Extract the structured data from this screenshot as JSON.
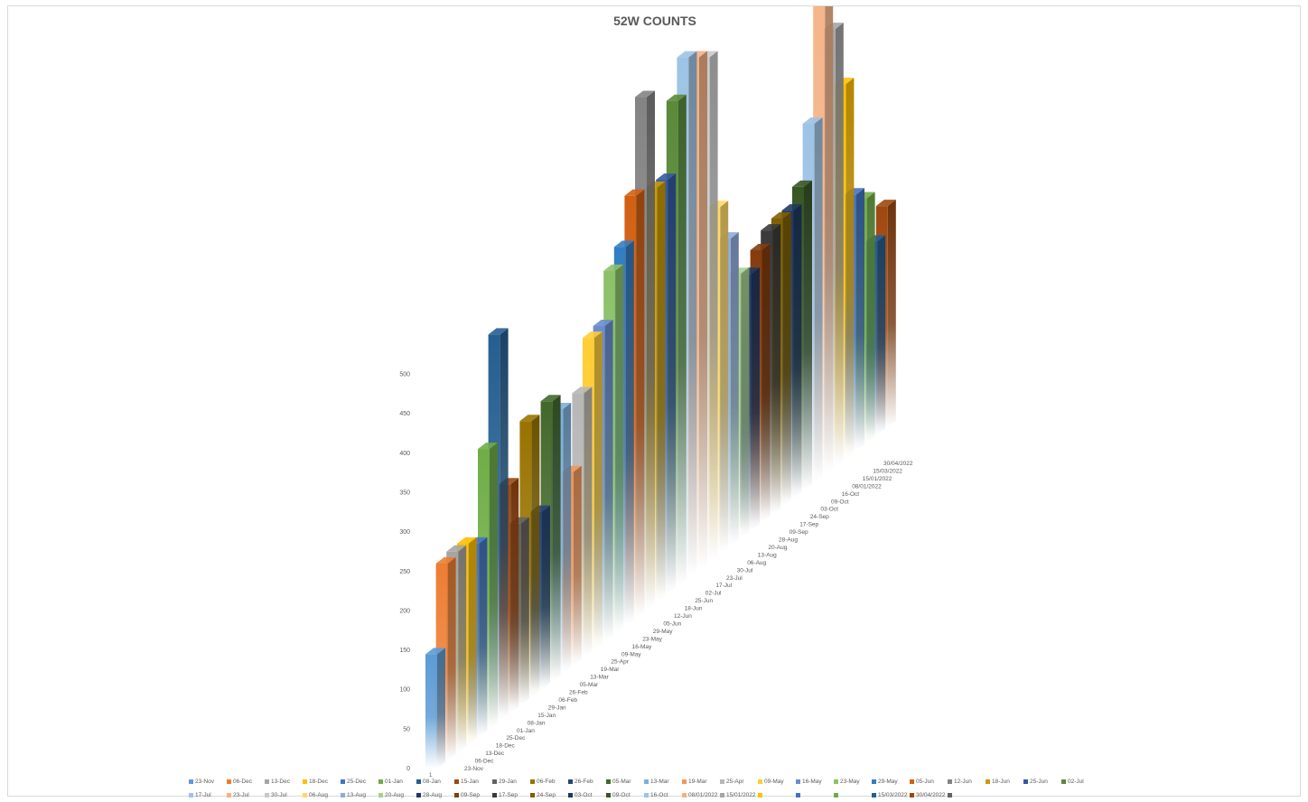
{
  "chart_data": {
    "type": "bar",
    "title": "52W COUNTS",
    "xlabel": "",
    "ylabel": "",
    "ylim": [
      0,
      500
    ],
    "yticks": [
      0,
      50,
      100,
      150,
      200,
      250,
      300,
      350,
      400,
      450,
      500
    ],
    "category_axis_label": "1",
    "grid": false,
    "legend_position": "bottom",
    "series": [
      {
        "name": "23-Nov",
        "value": 145,
        "color": "#5b9bd5"
      },
      {
        "name": "06-Dec",
        "value": 250,
        "color": "#ed7d31"
      },
      {
        "name": "13-Dec",
        "value": 255,
        "color": "#a5a5a5"
      },
      {
        "name": "18-Dec",
        "value": 255,
        "color": "#ffc000"
      },
      {
        "name": "25-Dec",
        "value": 245,
        "color": "#4472c4"
      },
      {
        "name": "01-Jan",
        "value": 355,
        "color": "#70ad47"
      },
      {
        "name": "08-Jan",
        "value": 490,
        "color": "#255e91"
      },
      {
        "name": "15-Jan",
        "value": 290,
        "color": "#9e480e"
      },
      {
        "name": "29-Jan",
        "value": 230,
        "color": "#636363"
      },
      {
        "name": "06-Feb",
        "value": 350,
        "color": "#997300"
      },
      {
        "name": "26-Feb",
        "value": 225,
        "color": "#264478"
      },
      {
        "name": "05-Mar",
        "value": 355,
        "color": "#43682b"
      },
      {
        "name": "13-Mar",
        "value": 335,
        "color": "#7cafdd"
      },
      {
        "name": "19-Mar",
        "value": 245,
        "color": "#f1975a"
      },
      {
        "name": "25-Apr",
        "value": 335,
        "color": "#b7b7b7"
      },
      {
        "name": "09-May",
        "value": 395,
        "color": "#ffcd33"
      },
      {
        "name": "16-May",
        "value": 400,
        "color": "#698ed0"
      },
      {
        "name": "23-May",
        "value": 460,
        "color": "#8cc168"
      },
      {
        "name": "29-May",
        "value": 480,
        "color": "#327dc2"
      },
      {
        "name": "05-Jun",
        "value": 535,
        "color": "#d26012"
      },
      {
        "name": "12-Jun",
        "value": 650,
        "color": "#848484"
      },
      {
        "name": "18-Jun",
        "value": 525,
        "color": "#cc9a00"
      },
      {
        "name": "25-Jun",
        "value": 525,
        "color": "#335aa1"
      },
      {
        "name": "02-Jul",
        "value": 615,
        "color": "#5a8a39"
      },
      {
        "name": "17-Jul",
        "value": 660,
        "color": "#9dc3e6"
      },
      {
        "name": "23-Jul",
        "value": 650,
        "color": "#f4b183"
      },
      {
        "name": "30-Jul",
        "value": 640,
        "color": "#c9c9c9"
      },
      {
        "name": "06-Aug",
        "value": 440,
        "color": "#ffd966"
      },
      {
        "name": "13-Aug",
        "value": 390,
        "color": "#8faadc"
      },
      {
        "name": "20-Aug",
        "value": 335,
        "color": "#a9d18e"
      },
      {
        "name": "28-Aug",
        "value": 325,
        "color": "#1f3864"
      },
      {
        "name": "09-Sep",
        "value": 345,
        "color": "#843c0c"
      },
      {
        "name": "17-Sep",
        "value": 360,
        "color": "#3a3a3a"
      },
      {
        "name": "24-Sep",
        "value": 365,
        "color": "#7f6000"
      },
      {
        "name": "03-Oct",
        "value": 365,
        "color": "#203864"
      },
      {
        "name": "09-Oct",
        "value": 385,
        "color": "#375623"
      },
      {
        "name": "16-Oct",
        "value": 455,
        "color": "#9dc3e6"
      },
      {
        "name": "08/01/2022",
        "value": 720,
        "color": "#f4b183"
      },
      {
        "name": "15/01/2022",
        "value": 555,
        "color": "#a5a5a5"
      },
      {
        "name": "",
        "value": 475,
        "color": "#ffc000"
      },
      {
        "name": "",
        "value": 325,
        "color": "#4472c4"
      },
      {
        "name": "",
        "value": 310,
        "color": "#70ad47"
      },
      {
        "name": "15/03/2022",
        "value": 245,
        "color": "#255e91"
      },
      {
        "name": "30/04/2022",
        "value": 280,
        "color": "#9e480e"
      },
      {
        "name": "",
        "value": 0,
        "color": "#636363"
      }
    ],
    "depth_axis_labels": [
      "23-Nov",
      "06-Dec",
      "13-Dec",
      "18-Dec",
      "25-Dec",
      "01-Jan",
      "08-Jan",
      "15-Jan",
      "29-Jan",
      "06-Feb",
      "26-Feb",
      "05-Mar",
      "13-Mar",
      "19-Mar",
      "25-Apr",
      "09-May",
      "16-May",
      "23-May",
      "29-May",
      "05-Jun",
      "12-Jun",
      "18-Jun",
      "25-Jun",
      "02-Jul",
      "17-Jul",
      "23-Jul",
      "30-Jul",
      "06-Aug",
      "13-Aug",
      "20-Aug",
      "28-Aug",
      "09-Sep",
      "17-Sep",
      "24-Sep",
      "03-Oct",
      "09-Oct",
      "16-Oct",
      "08/01/2022",
      "15/01/2022",
      "15/03/2022",
      "30/04/2022"
    ]
  }
}
